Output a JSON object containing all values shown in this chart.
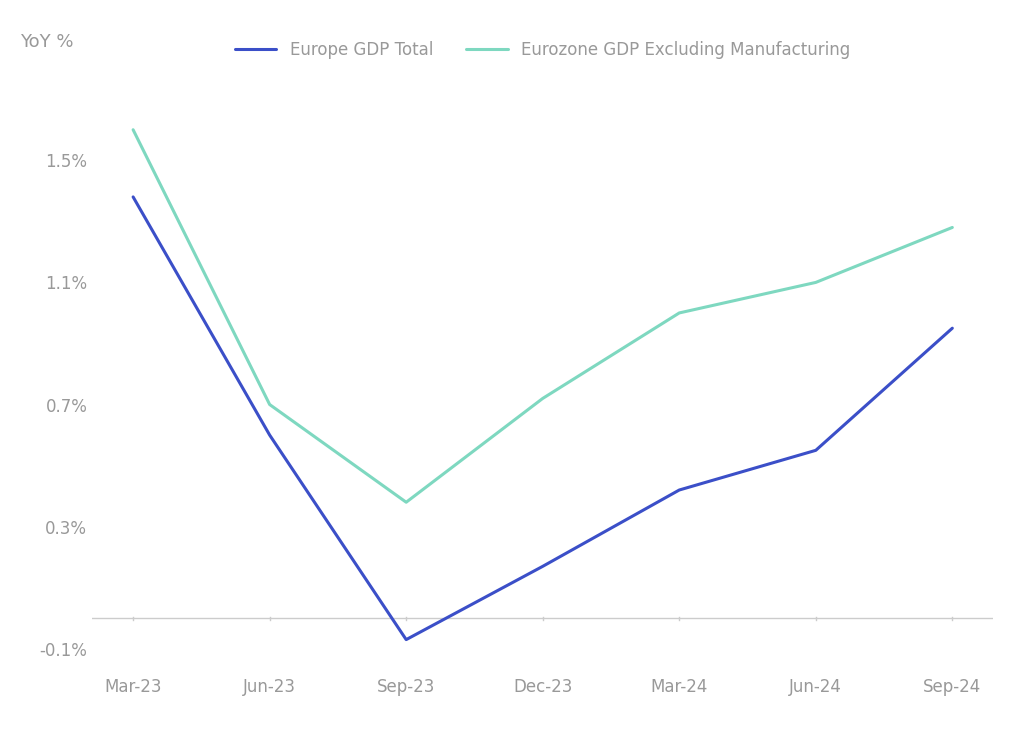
{
  "x_labels": [
    "Mar-23",
    "Jun-23",
    "Sep-23",
    "Dec-23",
    "Mar-24",
    "Jun-24",
    "Sep-24"
  ],
  "blue_line": {
    "label": "Europe GDP Total",
    "color": "#3B4FC8",
    "values": [
      1.38,
      0.6,
      -0.07,
      0.17,
      0.42,
      0.55,
      0.95
    ],
    "linewidth": 2.2
  },
  "teal_line": {
    "label": "Eurozone GDP Excluding Manufacturing",
    "color": "#7ED8C0",
    "values": [
      1.6,
      0.7,
      0.38,
      0.72,
      1.0,
      1.1,
      1.28
    ],
    "linewidth": 2.2
  },
  "ylabel": "YoY %",
  "ylim": [
    -0.18,
    1.78
  ],
  "yticks": [
    -0.1,
    0.3,
    0.7,
    1.1,
    1.5
  ],
  "ytick_labels": [
    "-0.1%",
    "0.3%",
    "0.7%",
    "1.1%",
    "1.5%"
  ],
  "background_color": "#FFFFFF",
  "axis_line_color": "#CCCCCC",
  "tick_color": "#AAAAAA",
  "label_color": "#999999",
  "legend_fontsize": 12,
  "ylabel_fontsize": 13,
  "tick_fontsize": 12
}
